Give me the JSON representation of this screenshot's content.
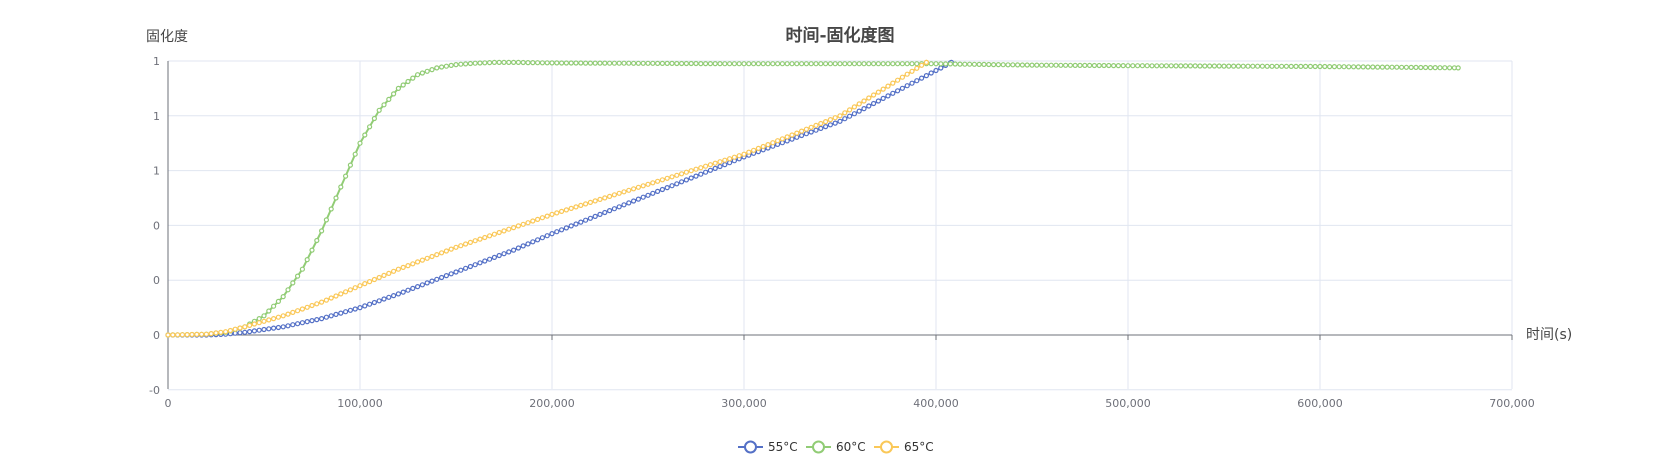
{
  "chart_data": {
    "type": "line",
    "title": "时间-固化度图",
    "xlabel": "时间(s)",
    "ylabel": "固化度",
    "xlim": [
      0,
      700000
    ],
    "ylim": [
      -0.2,
      1.0
    ],
    "x_ticks": [
      0,
      100000,
      200000,
      300000,
      400000,
      500000,
      600000,
      700000
    ],
    "x_tick_labels": [
      "0",
      "100,000",
      "200,000",
      "300,000",
      "400,000",
      "500,000",
      "600,000",
      "700,000"
    ],
    "y_ticks": [
      -0.2,
      0,
      0.2,
      0.4,
      0.6,
      0.8,
      1.0
    ],
    "y_tick_labels": [
      "-0",
      "0",
      "0",
      "0",
      "1",
      "1",
      "1"
    ],
    "grid": true,
    "legend_position": "bottom-center",
    "series": [
      {
        "name": "55°C",
        "color": "#5470c6",
        "x": [
          0,
          20000,
          30000,
          40000,
          60000,
          80000,
          100000,
          120000,
          150000,
          180000,
          200000,
          250000,
          300000,
          350000,
          408000
        ],
        "y": [
          0,
          0,
          0.003,
          0.01,
          0.03,
          0.06,
          0.1,
          0.15,
          0.23,
          0.31,
          0.37,
          0.51,
          0.65,
          0.78,
          0.995
        ]
      },
      {
        "name": "60°C",
        "color": "#91cc75",
        "x": [
          0,
          20000,
          30000,
          40000,
          50000,
          60000,
          70000,
          80000,
          90000,
          100000,
          110000,
          120000,
          130000,
          140000,
          150000,
          160000,
          170000,
          180000,
          200000,
          300000,
          400000,
          450000,
          500000,
          600000,
          672000
        ],
        "y": [
          0,
          0.003,
          0.01,
          0.03,
          0.07,
          0.14,
          0.24,
          0.38,
          0.54,
          0.7,
          0.82,
          0.9,
          0.95,
          0.975,
          0.987,
          0.992,
          0.995,
          0.995,
          0.993,
          0.99,
          0.99,
          0.985,
          0.983,
          0.98,
          0.975
        ]
      },
      {
        "name": "65°C",
        "color": "#fac858",
        "x": [
          0,
          20000,
          30000,
          40000,
          60000,
          80000,
          100000,
          120000,
          150000,
          200000,
          250000,
          300000,
          350000,
          395000
        ],
        "y": [
          0,
          0.003,
          0.012,
          0.03,
          0.07,
          0.12,
          0.18,
          0.24,
          0.32,
          0.44,
          0.55,
          0.66,
          0.8,
          0.995
        ]
      }
    ]
  }
}
